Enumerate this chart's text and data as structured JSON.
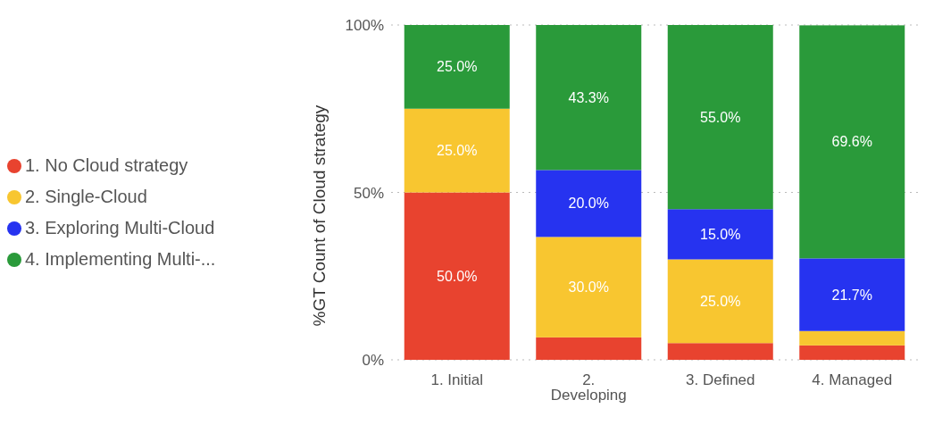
{
  "chart_data": {
    "type": "bar",
    "stacked": true,
    "ylabel": "%GT Count of Cloud strategy",
    "categories": [
      "1. Initial",
      "2. Developing",
      "3. Defined",
      "4. Managed"
    ],
    "series": [
      {
        "name": "1. No Cloud strategy",
        "color": "#e8432f",
        "values": [
          50,
          6.7,
          5,
          4.3
        ],
        "value_labels": [
          "50.0%",
          null,
          null,
          null
        ]
      },
      {
        "name": "2. Single-Cloud",
        "color": "#f8c630",
        "values": [
          25,
          30,
          25,
          4.3
        ],
        "value_labels": [
          "25.0%",
          "30.0%",
          "25.0%",
          null
        ]
      },
      {
        "name": "3. Exploring Multi-Cloud",
        "color": "#2633f0",
        "values": [
          0,
          20,
          15,
          21.7
        ],
        "value_labels": [
          null,
          "20.0%",
          "15.0%",
          "21.7%"
        ]
      },
      {
        "name": "4. Implementing Multi-...",
        "color": "#2a9a3a",
        "values": [
          25,
          43.3,
          55,
          69.6
        ],
        "value_labels": [
          "25.0%",
          "43.3%",
          "55.0%",
          "69.6%"
        ]
      }
    ],
    "ylim": [
      0,
      100
    ],
    "yticks": [
      {
        "value": 0,
        "label": "0%"
      },
      {
        "value": 50,
        "label": "50%"
      },
      {
        "value": 100,
        "label": "100%"
      }
    ],
    "grid": "y",
    "legend": "left"
  }
}
